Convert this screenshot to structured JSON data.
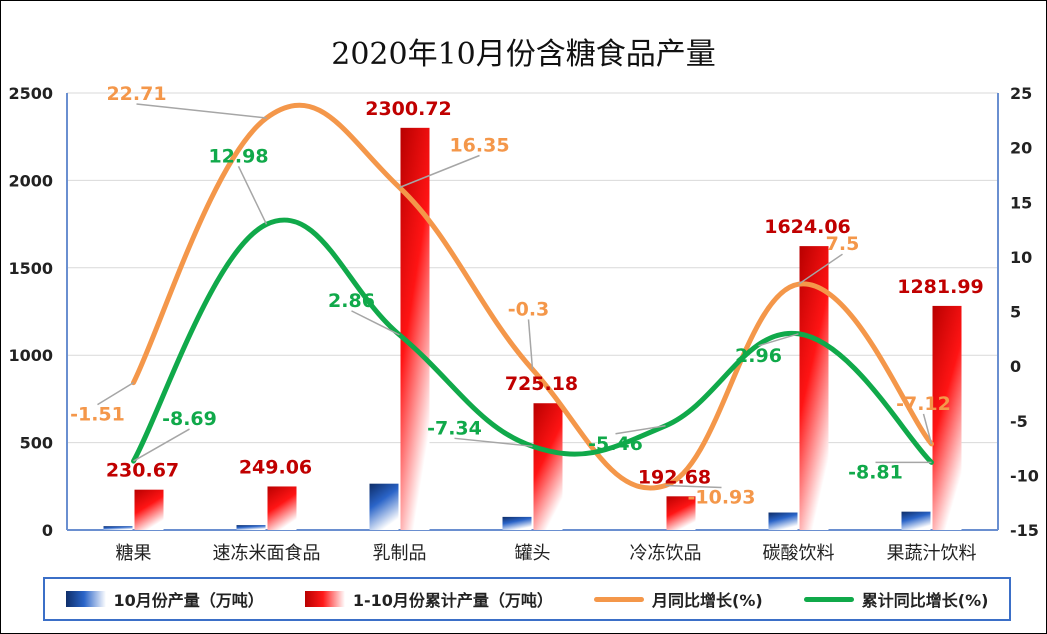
{
  "chart_data": {
    "type": "bar+line",
    "title": "2020年10月份含糖食品产量",
    "categories": [
      "糖果",
      "速冻米面食品",
      "乳制品",
      "罐头",
      "冷冻饮品",
      "碳酸饮料",
      "果蔬汁饮料"
    ],
    "y_left": {
      "min": 0,
      "max": 2500,
      "ticks": [
        "0",
        "500",
        "1000",
        "1500",
        "2000",
        "2500"
      ]
    },
    "y_right": {
      "min": -15,
      "max": 25,
      "ticks": [
        "-15",
        "-10",
        "-5",
        "0",
        "5",
        "10",
        "15",
        "20",
        "25"
      ]
    },
    "grid": true,
    "legend_position": "bottom",
    "series": [
      {
        "name": "10月份产量（万吨）",
        "type": "bar",
        "axis": "left",
        "color": "#1f4e9c",
        "values": [
          22,
          28,
          265,
          75,
          0,
          100,
          105
        ]
      },
      {
        "name": "1-10月份累计产量（万吨）",
        "type": "bar",
        "axis": "left",
        "color": "#e30b0b",
        "values": [
          230.67,
          249.06,
          2300.72,
          725.18,
          192.68,
          1624.06,
          1281.99
        ],
        "labels": [
          "230.67",
          "249.06",
          "2300.72",
          "725.18",
          "192.68",
          "1624.06",
          "1281.99"
        ]
      },
      {
        "name": "月同比增长(%)",
        "type": "line",
        "axis": "right",
        "color": "#f4974a",
        "values": [
          -1.51,
          22.71,
          16.35,
          -0.3,
          -10.93,
          7.5,
          -7.12
        ],
        "labels": [
          "-1.51",
          "22.71",
          "16.35",
          "-0.3",
          "-10.93",
          "7.5",
          "-7.12"
        ]
      },
      {
        "name": "累计同比增长(%)",
        "type": "line",
        "axis": "right",
        "color": "#10a94a",
        "values": [
          -8.69,
          12.98,
          2.86,
          -7.34,
          -5.46,
          2.96,
          -8.81
        ],
        "labels": [
          "-8.69",
          "12.98",
          "2.86",
          "-7.34",
          "-5.46",
          "2.96",
          "-8.81"
        ]
      }
    ]
  }
}
